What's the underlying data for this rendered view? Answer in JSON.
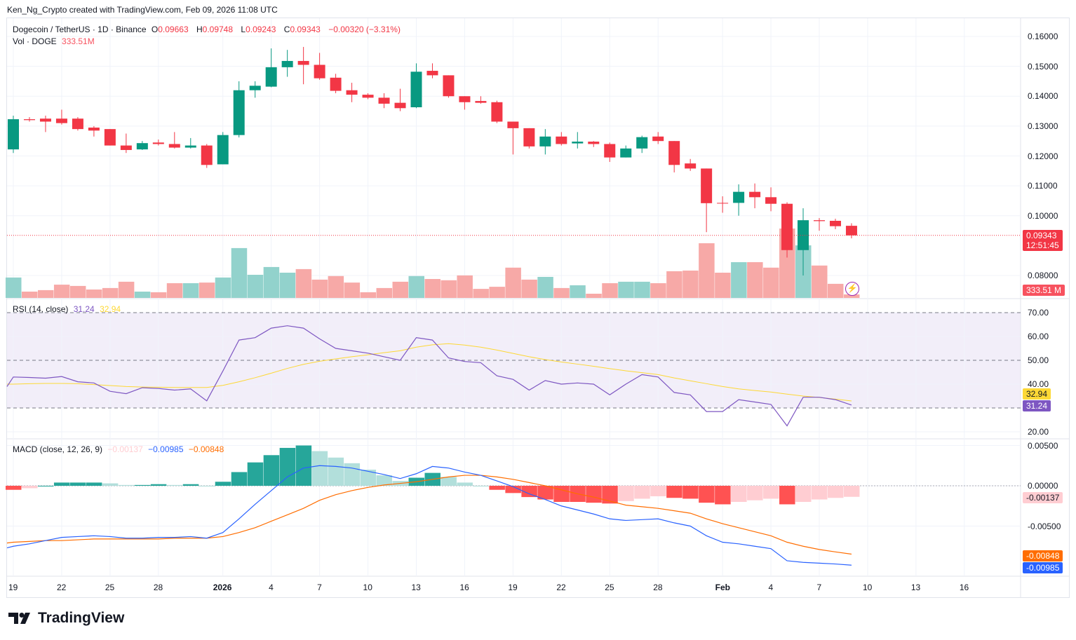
{
  "caption": "Ken_Ng_Crypto created with TradingView.com, Feb 09, 2026 11:08 UTC",
  "legend": {
    "symbol": "Dogecoin / TetherUS · 1D · Binance",
    "o_label": "O",
    "o": "0.09663",
    "h_label": "H",
    "h": "0.09748",
    "l_label": "L",
    "l": "0.09243",
    "c_label": "C",
    "c": "0.09343",
    "change": "−0.00320 (−3.31%)",
    "vol_label": "Vol · DOGE",
    "vol": "333.51M",
    "rsi_label": "RSI (14, close)",
    "rsi": "31.24",
    "rsi_ma": "32.94",
    "macd_label": "MACD (close, 12, 26, 9)",
    "macd_hist": "−0.00137",
    "macd": "−0.00985",
    "macd_signal": "−0.00848"
  },
  "badges": {
    "price": "0.09343",
    "countdown": "12:51:45",
    "volume": "333.51 M",
    "rsi_ma": "32.94",
    "rsi": "31.24",
    "macd_hist": "-0.00137",
    "macd_signal": "-0.00848",
    "macd": "-0.00985"
  },
  "colors": {
    "up": "#089981",
    "down": "#f23645",
    "up_vol": "#92d2cc",
    "down_vol": "#f7a9a7",
    "rsi": "#7e57c2",
    "rsi_ma": "#fdd835",
    "macd": "#2962ff",
    "signal": "#ff6d00"
  },
  "logo": "TradingView",
  "chart_data": {
    "type": "candlestick",
    "title": "Dogecoin / TetherUS · 1D · Binance",
    "price_ticks": [
      "0.16000",
      "0.15000",
      "0.14000",
      "0.13000",
      "0.12000",
      "0.11000",
      "0.10000",
      "0.08000"
    ],
    "price_tick_values": [
      0.16,
      0.15,
      0.14,
      0.13,
      0.12,
      0.11,
      0.1,
      0.08
    ],
    "rsi_ticks": [
      "70.00",
      "60.00",
      "50.00",
      "40.00",
      "20.00"
    ],
    "rsi_tick_values": [
      70,
      60,
      50,
      40,
      20
    ],
    "macd_ticks": [
      "0.00500",
      "0.00000",
      "-0.00500"
    ],
    "macd_tick_values": [
      0.005,
      0,
      -0.005
    ],
    "x_ticks": [
      {
        "day": 0,
        "label": "19"
      },
      {
        "day": 3,
        "label": "22"
      },
      {
        "day": 6,
        "label": "25"
      },
      {
        "day": 9,
        "label": "28"
      },
      {
        "day": 13,
        "label": "2026"
      },
      {
        "day": 16,
        "label": "4"
      },
      {
        "day": 19,
        "label": "7"
      },
      {
        "day": 22,
        "label": "10"
      },
      {
        "day": 25,
        "label": "13"
      },
      {
        "day": 28,
        "label": "16"
      },
      {
        "day": 31,
        "label": "19"
      },
      {
        "day": 34,
        "label": "22"
      },
      {
        "day": 37,
        "label": "25"
      },
      {
        "day": 40,
        "label": "28"
      },
      {
        "day": 44,
        "label": "Feb"
      },
      {
        "day": 47,
        "label": "4"
      },
      {
        "day": 50,
        "label": "7"
      },
      {
        "day": 53,
        "label": "10"
      },
      {
        "day": 56,
        "label": "13"
      },
      {
        "day": 59,
        "label": "16"
      }
    ],
    "ohlc": [
      [
        0.1222,
        0.1335,
        0.121,
        0.1323
      ],
      [
        0.1323,
        0.133,
        0.1315,
        0.132
      ],
      [
        0.1325,
        0.1335,
        0.128,
        0.1315
      ],
      [
        0.1325,
        0.1355,
        0.1305,
        0.131
      ],
      [
        0.1325,
        0.133,
        0.1285,
        0.129
      ],
      [
        0.1295,
        0.13,
        0.1265,
        0.1285
      ],
      [
        0.129,
        0.129,
        0.1235,
        0.1235
      ],
      [
        0.1235,
        0.1275,
        0.121,
        0.122
      ],
      [
        0.1222,
        0.125,
        0.122,
        0.1243
      ],
      [
        0.1245,
        0.1255,
        0.1235,
        0.124
      ],
      [
        0.124,
        0.128,
        0.1225,
        0.1228
      ],
      [
        0.1228,
        0.126,
        0.1225,
        0.1235
      ],
      [
        0.1235,
        0.124,
        0.116,
        0.117
      ],
      [
        0.1172,
        0.128,
        0.1172,
        0.127
      ],
      [
        0.127,
        0.145,
        0.1262,
        0.142
      ],
      [
        0.142,
        0.145,
        0.1395,
        0.1435
      ],
      [
        0.1432,
        0.156,
        0.143,
        0.1497
      ],
      [
        0.1497,
        0.1555,
        0.1465,
        0.1518
      ],
      [
        0.1518,
        0.1565,
        0.144,
        0.1505
      ],
      [
        0.1505,
        0.1545,
        0.1455,
        0.146
      ],
      [
        0.1462,
        0.1475,
        0.141,
        0.1418
      ],
      [
        0.142,
        0.1445,
        0.138,
        0.1405
      ],
      [
        0.1405,
        0.141,
        0.139,
        0.1395
      ],
      [
        0.1395,
        0.141,
        0.136,
        0.1375
      ],
      [
        0.1378,
        0.1425,
        0.135,
        0.136
      ],
      [
        0.1363,
        0.151,
        0.136,
        0.1482
      ],
      [
        0.1485,
        0.151,
        0.146,
        0.147
      ],
      [
        0.147,
        0.147,
        0.1395,
        0.14
      ],
      [
        0.14,
        0.14,
        0.1355,
        0.138
      ],
      [
        0.1384,
        0.14,
        0.1375,
        0.1378
      ],
      [
        0.138,
        0.1385,
        0.131,
        0.1315
      ],
      [
        0.1315,
        0.1315,
        0.1205,
        0.1293
      ],
      [
        0.1293,
        0.1293,
        0.1225,
        0.1232
      ],
      [
        0.1232,
        0.129,
        0.1205,
        0.1265
      ],
      [
        0.1265,
        0.128,
        0.1235,
        0.124
      ],
      [
        0.1242,
        0.128,
        0.1225,
        0.1248
      ],
      [
        0.1248,
        0.125,
        0.123,
        0.124
      ],
      [
        0.124,
        0.1245,
        0.118,
        0.1195
      ],
      [
        0.1195,
        0.1235,
        0.1195,
        0.1225
      ],
      [
        0.1225,
        0.1268,
        0.121,
        0.1263
      ],
      [
        0.1265,
        0.128,
        0.124,
        0.125
      ],
      [
        0.125,
        0.125,
        0.1145,
        0.117
      ],
      [
        0.1175,
        0.119,
        0.115,
        0.1158
      ],
      [
        0.1158,
        0.1158,
        0.0945,
        0.1042
      ],
      [
        0.1043,
        0.1065,
        0.101,
        0.1042
      ],
      [
        0.1043,
        0.1105,
        0.1,
        0.108
      ],
      [
        0.108,
        0.1108,
        0.1025,
        0.1062
      ],
      [
        0.1062,
        0.1095,
        0.1015,
        0.104
      ],
      [
        0.104,
        0.1045,
        0.086,
        0.0885
      ],
      [
        0.0885,
        0.1025,
        0.08,
        0.0985
      ],
      [
        0.0985,
        0.0992,
        0.095,
        0.0982
      ],
      [
        0.0983,
        0.099,
        0.0955,
        0.0965
      ],
      [
        0.09663,
        0.09748,
        0.09243,
        0.09343
      ]
    ],
    "volume_m": [
      1940,
      600,
      740,
      1260,
      1140,
      800,
      940,
      1540,
      600,
      540,
      1400,
      1400,
      1460,
      1940,
      4740,
      2200,
      2940,
      2400,
      2740,
      1740,
      2080,
      1460,
      540,
      940,
      1540,
      2080,
      1800,
      1680,
      2140,
      860,
      1060,
      2880,
      1740,
      2000,
      940,
      1200,
      400,
      1400,
      1540,
      1540,
      1400,
      2540,
      2600,
      5200,
      2400,
      3400,
      3400,
      2880,
      6600,
      5000,
      3080,
      1340,
      333.51
    ],
    "rsi": [
      43,
      42.8,
      42.5,
      43.2,
      41,
      40.5,
      37,
      36,
      38.5,
      38.2,
      37.5,
      38,
      33,
      45.5,
      58.5,
      59.5,
      63.5,
      64.5,
      63.5,
      59,
      55,
      54,
      53,
      51.5,
      50,
      59.5,
      58.5,
      51,
      49.5,
      49,
      43.5,
      42,
      37.5,
      41.5,
      40,
      40.5,
      40,
      35.5,
      40,
      44,
      43,
      36.5,
      35.5,
      28.5,
      28.5,
      33.5,
      32.5,
      31.5,
      22.5,
      34.5,
      34.5,
      33.5,
      31.24
    ],
    "rsi_ma": [
      40,
      40.2,
      40.3,
      40.3,
      40.2,
      39.8,
      39.4,
      39,
      38.8,
      38.7,
      38.6,
      38.6,
      38.6,
      39.5,
      41,
      42.7,
      44.6,
      46.6,
      48.3,
      49.6,
      50.6,
      51.5,
      52.3,
      53.2,
      54,
      55.5,
      56.5,
      57,
      56.4,
      55.5,
      54.3,
      52.9,
      51.5,
      50.3,
      49.3,
      48.4,
      47.5,
      46.5,
      45.6,
      44.8,
      44,
      42.6,
      41.4,
      40.2,
      39,
      38,
      37.3,
      36.7,
      35.8,
      35,
      34.4,
      33.7,
      32.94
    ],
    "macd": [
      -0.0075,
      -0.0072,
      -0.0068,
      -0.0064,
      -0.0063,
      -0.0062,
      -0.0063,
      -0.0065,
      -0.0065,
      -0.0064,
      -0.0064,
      -0.0063,
      -0.0065,
      -0.0058,
      -0.0041,
      -0.0023,
      -0.0006,
      0.0011,
      0.0022,
      0.0025,
      0.0024,
      0.0022,
      0.0018,
      0.0014,
      0.0009,
      0.0015,
      0.0024,
      0.0022,
      0.0017,
      0.0013,
      0.0006,
      -0.0001,
      -0.001,
      -0.0017,
      -0.0025,
      -0.003,
      -0.0035,
      -0.0041,
      -0.0043,
      -0.0042,
      -0.0041,
      -0.0046,
      -0.005,
      -0.0062,
      -0.007,
      -0.0072,
      -0.0075,
      -0.0078,
      -0.0093,
      -0.0095,
      -0.0096,
      -0.0097,
      -0.00985
    ],
    "signal": [
      -0.007,
      -0.0069,
      -0.0068,
      -0.0068,
      -0.0067,
      -0.0066,
      -0.0066,
      -0.0066,
      -0.0066,
      -0.0066,
      -0.0065,
      -0.0065,
      -0.0065,
      -0.0063,
      -0.0058,
      -0.0052,
      -0.0044,
      -0.0036,
      -0.0028,
      -0.0018,
      -0.0011,
      -0.0006,
      -0.0002,
      0.0001,
      0.0003,
      0.0005,
      0.0008,
      0.0011,
      0.0013,
      0.0013,
      0.0011,
      0.0008,
      0.0004,
      0,
      -0.0005,
      -0.001,
      -0.0014,
      -0.0019,
      -0.0024,
      -0.0026,
      -0.0028,
      -0.0031,
      -0.0034,
      -0.0041,
      -0.0047,
      -0.0052,
      -0.0057,
      -0.0062,
      -0.007,
      -0.0075,
      -0.0079,
      -0.0082,
      -0.00848
    ],
    "rsi_bands": [
      70,
      50,
      30
    ],
    "last_price_line": 0.09343
  }
}
